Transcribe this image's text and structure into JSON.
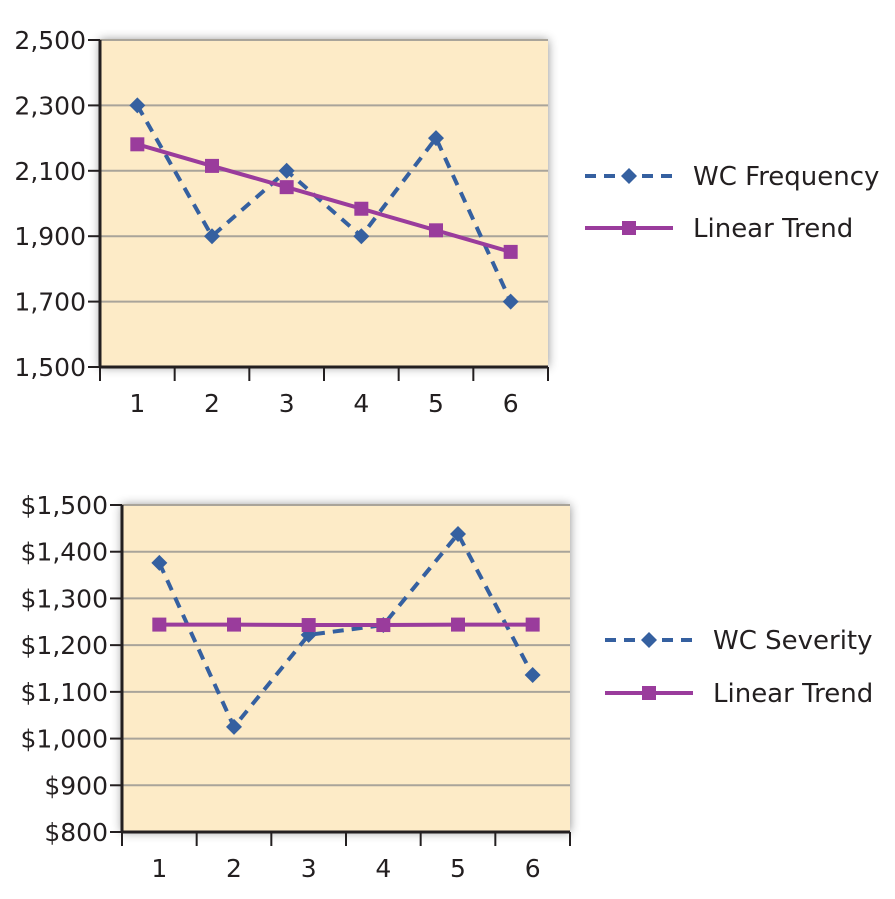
{
  "colors": {
    "series": "#3560a0",
    "trend": "#9a3c9c",
    "plot_bg": "#fdebc7",
    "grid": "#a9a49a",
    "axis": "#231f20"
  },
  "chart_data": [
    {
      "type": "line",
      "title": "",
      "xlabel": "",
      "ylabel": "",
      "categories": [
        "1",
        "2",
        "3",
        "4",
        "5",
        "6"
      ],
      "ylim": [
        1500,
        2500
      ],
      "yticks": [
        1500,
        1700,
        1900,
        2100,
        2300,
        2500
      ],
      "ytick_labels": [
        "1,500",
        "1,700",
        "1,900",
        "2,100",
        "2,300",
        "2,500"
      ],
      "grid": true,
      "legend_position": "right",
      "series": [
        {
          "name": "WC Frequency",
          "style": "dashed",
          "marker": "diamond",
          "values": [
            2300,
            1900,
            2100,
            1900,
            2200,
            1700
          ]
        },
        {
          "name": "Linear Trend",
          "style": "solid",
          "marker": "square",
          "values": [
            2181,
            2115,
            2050,
            1984,
            1918,
            1852
          ]
        }
      ]
    },
    {
      "type": "line",
      "title": "",
      "xlabel": "",
      "ylabel": "",
      "categories": [
        "1",
        "2",
        "3",
        "4",
        "5",
        "6"
      ],
      "ylim": [
        800,
        1500
      ],
      "yticks": [
        800,
        900,
        1000,
        1100,
        1200,
        1300,
        1400,
        1500
      ],
      "ytick_labels": [
        "$800",
        "$900",
        "$1,000",
        "$1,100",
        "$1,200",
        "$1,300",
        "$1,400",
        "$1,500"
      ],
      "grid": true,
      "legend_position": "right",
      "series": [
        {
          "name": "WC Severity",
          "style": "dashed",
          "marker": "diamond",
          "values": [
            1376,
            1025,
            1222,
            1243,
            1438,
            1136
          ]
        },
        {
          "name": "Linear Trend",
          "style": "solid",
          "marker": "square",
          "values": [
            1244,
            1244,
            1243,
            1243,
            1244,
            1244
          ]
        }
      ]
    }
  ]
}
